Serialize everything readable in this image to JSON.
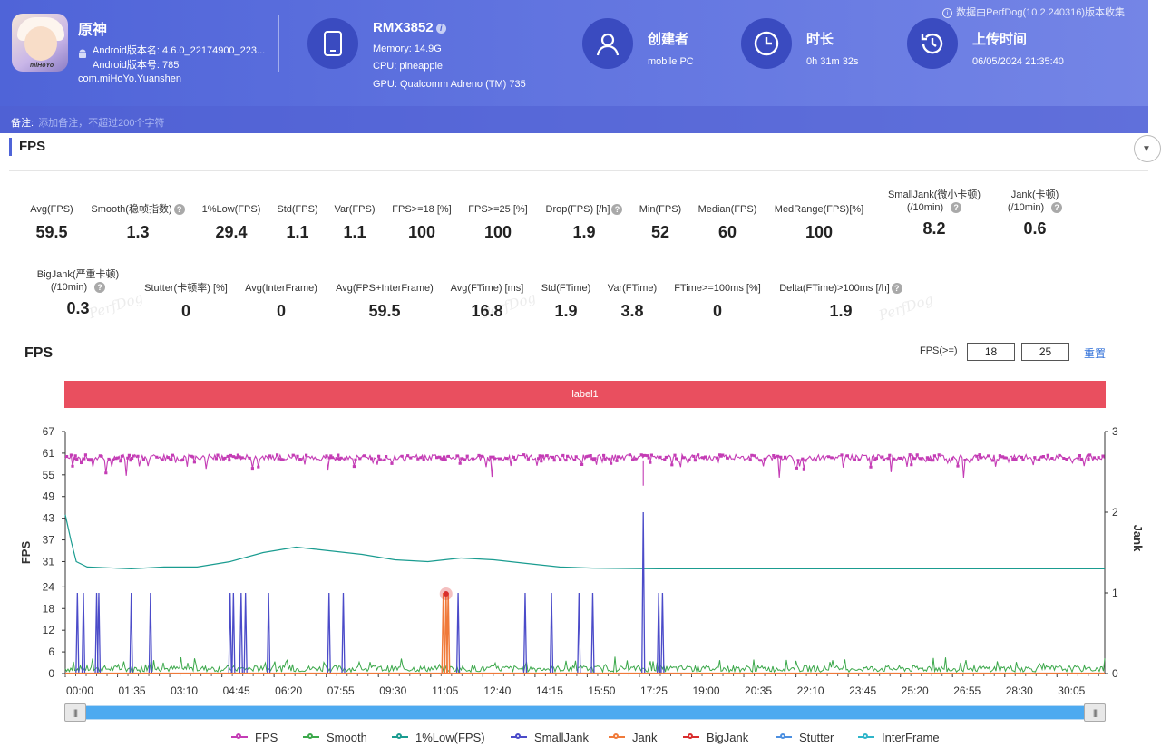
{
  "header": {
    "app": {
      "name": "原神",
      "version_name_label": "Android版本名: 4.6.0_22174900_223...",
      "version_code_label": "Android版本号: 785",
      "package": "com.miHoYo.Yuanshen",
      "icon_brand": "miHoYo"
    },
    "device": {
      "model": "RMX3852",
      "memory": "Memory: 14.9G",
      "cpu": "CPU: pineapple",
      "gpu": "GPU: Qualcomm Adreno (TM) 735"
    },
    "creator": {
      "title": "创建者",
      "value": "mobile PC"
    },
    "duration": {
      "title": "时长",
      "value": "0h 31m 32s"
    },
    "upload": {
      "title": "上传时间",
      "value": "06/05/2024 21:35:40"
    },
    "collected_by": "数据由PerfDog(10.2.240316)版本收集",
    "note_label": "备注:",
    "note_placeholder": "添加备注，不超过200个字符"
  },
  "section": {
    "title": "FPS"
  },
  "metrics_row1": [
    {
      "label": "Avg(FPS)",
      "value": "59.5",
      "help": false
    },
    {
      "label": "Smooth(稳帧指数)",
      "value": "1.3",
      "help": true
    },
    {
      "label": "1%Low(FPS)",
      "value": "29.4",
      "help": false
    },
    {
      "label": "Std(FPS)",
      "value": "1.1",
      "help": false
    },
    {
      "label": "Var(FPS)",
      "value": "1.1",
      "help": false
    },
    {
      "label": "FPS>=18 [%]",
      "value": "100",
      "help": false
    },
    {
      "label": "FPS>=25 [%]",
      "value": "100",
      "help": false
    },
    {
      "label": "Drop(FPS) [/h]",
      "value": "1.9",
      "help": true
    },
    {
      "label": "Min(FPS)",
      "value": "52",
      "help": false
    },
    {
      "label": "Median(FPS)",
      "value": "60",
      "help": false
    },
    {
      "label": "MedRange(FPS)[%]",
      "value": "100",
      "help": false
    },
    {
      "label": "SmallJank(微小卡顿)",
      "label2": "(/10min)",
      "value": "8.2",
      "help": true
    },
    {
      "label": "Jank(卡顿)",
      "label2": "(/10min)",
      "value": "0.6",
      "help": true
    }
  ],
  "metrics_row2": [
    {
      "label": "BigJank(严重卡顿)",
      "label2": "(/10min)",
      "value": "0.3",
      "help": true
    },
    {
      "label": "Stutter(卡顿率) [%]",
      "value": "0",
      "help": false
    },
    {
      "label": "Avg(InterFrame)",
      "value": "0",
      "help": false
    },
    {
      "label": "Avg(FPS+InterFrame)",
      "value": "59.5",
      "help": false
    },
    {
      "label": "Avg(FTime) [ms]",
      "value": "16.8",
      "help": false
    },
    {
      "label": "Std(FTime)",
      "value": "1.9",
      "help": false
    },
    {
      "label": "Var(FTime)",
      "value": "3.8",
      "help": false
    },
    {
      "label": "FTime>=100ms [%]",
      "value": "0",
      "help": false
    },
    {
      "label": "Delta(FTime)>100ms [/h]",
      "value": "1.9",
      "help": true
    }
  ],
  "watermark_text": "PerfDog",
  "chart_controls": {
    "title": "FPS",
    "threshold_label": "FPS(>=)",
    "threshold1": "18",
    "threshold2": "25",
    "reset_label": "重置",
    "label_bar": "label1"
  },
  "chart_data": {
    "type": "line",
    "title": "FPS",
    "ylabel": "FPS",
    "y2label": "Jank",
    "ylim": [
      0,
      67
    ],
    "y2lim": [
      0,
      3
    ],
    "yticks": [
      0,
      6,
      12,
      18,
      24,
      31,
      37,
      43,
      49,
      55,
      61,
      67
    ],
    "y2ticks": [
      0,
      1,
      2,
      3
    ],
    "xlim_seconds": [
      0,
      1892
    ],
    "xticks": [
      "00:00",
      "01:35",
      "03:10",
      "04:45",
      "06:20",
      "07:55",
      "09:30",
      "11:05",
      "12:40",
      "14:15",
      "15:50",
      "17:25",
      "19:00",
      "20:35",
      "22:10",
      "23:45",
      "25:20",
      "26:55",
      "28:30",
      "30:05"
    ],
    "legend_position": "bottom",
    "series": [
      {
        "name": "FPS",
        "color": "#c43cb5",
        "typical": 60,
        "range": [
          57,
          61
        ],
        "dips_to": 52
      },
      {
        "name": "Smooth",
        "color": "#3ba84a",
        "typical_jank_axis": 0.05,
        "max_jank_axis": 0.25
      },
      {
        "name": "1%Low(FPS)",
        "color": "#1a9c90",
        "x_seconds": [
          0,
          10,
          20,
          40,
          60,
          120,
          180,
          240,
          300,
          360,
          420,
          480,
          540,
          600,
          660,
          720,
          780,
          840,
          900,
          960,
          1080,
          1200,
          1320,
          1440,
          1560,
          1680,
          1800,
          1892
        ],
        "values": [
          44,
          37,
          31,
          29.5,
          29.4,
          29,
          29.5,
          29.5,
          31,
          33.5,
          35,
          34,
          33,
          31.5,
          31,
          32,
          31.5,
          30.5,
          29.5,
          29.2,
          29,
          29,
          29,
          29,
          29,
          29,
          29,
          29
        ]
      },
      {
        "name": "SmallJank",
        "color": "#4b4bc9",
        "value_jank_axis": 1,
        "x_seconds": [
          22,
          33,
          57,
          61,
          120,
          155,
          300,
          306,
          320,
          328,
          370,
          480,
          506,
          715,
          837,
          885,
          935,
          960,
          1052,
          1080,
          1087
        ],
        "tall_spike_x_seconds": 1052,
        "tall_spike_value": 2
      },
      {
        "name": "Jank",
        "color": "#f07a3a",
        "x_seconds": [
          688,
          693,
          697
        ],
        "value_jank_axis": 1
      },
      {
        "name": "BigJank",
        "color": "#d92d2d",
        "x_seconds": [
          693
        ],
        "value_jank_axis": 1
      },
      {
        "name": "Stutter",
        "color": "#4c8fe0",
        "values_constant": 0
      },
      {
        "name": "InterFrame",
        "color": "#2fb5c9",
        "values_constant": 0
      }
    ]
  }
}
